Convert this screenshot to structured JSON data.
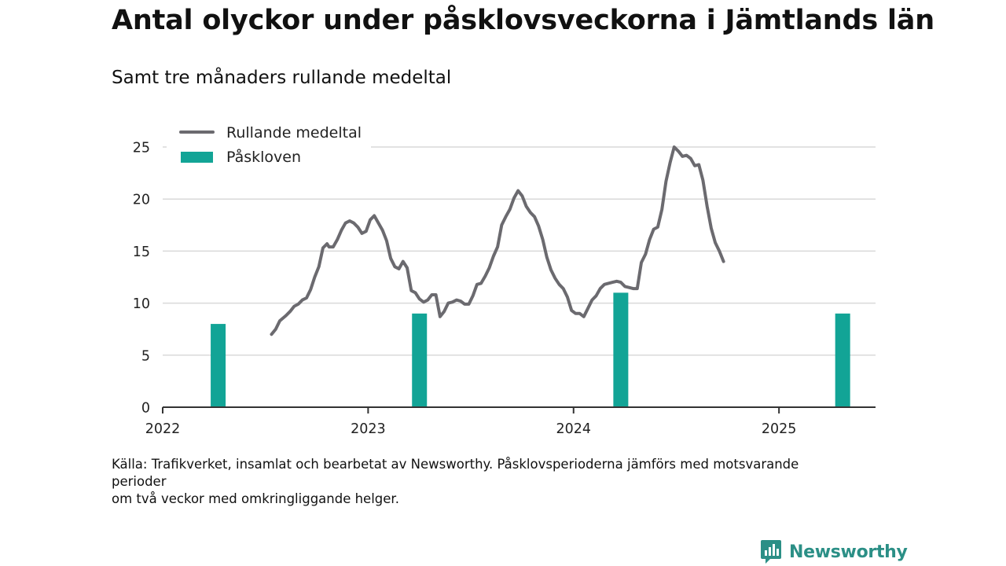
{
  "title": "Antal olyckor under påsklovsveckorna i Jämtlands län",
  "subtitle": "Samt tre månaders rullande medeltal",
  "source": {
    "line1": "Källa: Trafikverket, insamlat och bearbetat av Newsworthy. Påsklovsperioderna jämförs med motsvarande perioder",
    "line2": "om två veckor med omkringliggande helger."
  },
  "brand": {
    "name": "Newsworthy",
    "icon": "newsworthy-logo-icon"
  },
  "colors": {
    "line": "#6b6a6f",
    "bar": "#12a496",
    "grid": "#d9d9d9",
    "axis": "#333333",
    "brand": "#2b8f86"
  },
  "chart_data": {
    "type": "bar+line",
    "title": "Antal olyckor under påsklovsveckorna i Jämtlands län",
    "subtitle": "Samt tre månaders rullande medeltal",
    "xlabel": "",
    "ylabel": "",
    "ylim": [
      0,
      25
    ],
    "yticks": [
      0,
      5,
      10,
      15,
      20,
      25
    ],
    "xlim": [
      2022.0,
      2025.47
    ],
    "xticks": [
      {
        "value": 2022,
        "label": "2022"
      },
      {
        "value": 2023,
        "label": "2023"
      },
      {
        "value": 2024,
        "label": "2024"
      },
      {
        "value": 2025,
        "label": "2025"
      }
    ],
    "grid": "horizontal",
    "legend_position": "top-left",
    "series": [
      {
        "name": "Rullande medeltal",
        "type": "line",
        "points": [
          [
            2022.53,
            7.0
          ],
          [
            2022.55,
            7.5
          ],
          [
            2022.57,
            8.3
          ],
          [
            2022.6,
            8.8
          ],
          [
            2022.62,
            9.2
          ],
          [
            2022.64,
            9.7
          ],
          [
            2022.66,
            9.9
          ],
          [
            2022.68,
            10.3
          ],
          [
            2022.7,
            10.5
          ],
          [
            2022.72,
            11.3
          ],
          [
            2022.74,
            12.5
          ],
          [
            2022.76,
            13.5
          ],
          [
            2022.78,
            15.3
          ],
          [
            2022.8,
            15.7
          ],
          [
            2022.81,
            15.4
          ],
          [
            2022.83,
            15.4
          ],
          [
            2022.85,
            16.1
          ],
          [
            2022.87,
            17.0
          ],
          [
            2022.89,
            17.7
          ],
          [
            2022.91,
            17.9
          ],
          [
            2022.93,
            17.7
          ],
          [
            2022.95,
            17.3
          ],
          [
            2022.97,
            16.7
          ],
          [
            2022.99,
            16.9
          ],
          [
            2023.01,
            18.0
          ],
          [
            2023.03,
            18.4
          ],
          [
            2023.05,
            17.7
          ],
          [
            2023.07,
            17.0
          ],
          [
            2023.09,
            16.0
          ],
          [
            2023.11,
            14.3
          ],
          [
            2023.13,
            13.5
          ],
          [
            2023.15,
            13.3
          ],
          [
            2023.17,
            14.0
          ],
          [
            2023.19,
            13.4
          ],
          [
            2023.21,
            11.2
          ],
          [
            2023.23,
            11.0
          ],
          [
            2023.25,
            10.4
          ],
          [
            2023.27,
            10.1
          ],
          [
            2023.29,
            10.3
          ],
          [
            2023.31,
            10.8
          ],
          [
            2023.33,
            10.8
          ],
          [
            2023.35,
            8.7
          ],
          [
            2023.37,
            9.2
          ],
          [
            2023.39,
            10.0
          ],
          [
            2023.41,
            10.1
          ],
          [
            2023.43,
            10.3
          ],
          [
            2023.45,
            10.2
          ],
          [
            2023.47,
            9.9
          ],
          [
            2023.49,
            9.9
          ],
          [
            2023.51,
            10.7
          ],
          [
            2023.53,
            11.8
          ],
          [
            2023.55,
            11.9
          ],
          [
            2023.57,
            12.6
          ],
          [
            2023.59,
            13.4
          ],
          [
            2023.61,
            14.5
          ],
          [
            2023.63,
            15.4
          ],
          [
            2023.65,
            17.5
          ],
          [
            2023.67,
            18.3
          ],
          [
            2023.69,
            19.0
          ],
          [
            2023.71,
            20.1
          ],
          [
            2023.73,
            20.8
          ],
          [
            2023.75,
            20.3
          ],
          [
            2023.77,
            19.3
          ],
          [
            2023.79,
            18.7
          ],
          [
            2023.81,
            18.3
          ],
          [
            2023.83,
            17.4
          ],
          [
            2023.85,
            16.1
          ],
          [
            2023.87,
            14.4
          ],
          [
            2023.89,
            13.2
          ],
          [
            2023.91,
            12.4
          ],
          [
            2023.93,
            11.8
          ],
          [
            2023.95,
            11.4
          ],
          [
            2023.97,
            10.6
          ],
          [
            2023.99,
            9.3
          ],
          [
            2024.01,
            9.0
          ],
          [
            2024.03,
            9.0
          ],
          [
            2024.05,
            8.7
          ],
          [
            2024.07,
            9.5
          ],
          [
            2024.09,
            10.3
          ],
          [
            2024.11,
            10.7
          ],
          [
            2024.13,
            11.4
          ],
          [
            2024.15,
            11.8
          ],
          [
            2024.17,
            11.9
          ],
          [
            2024.19,
            12.0
          ],
          [
            2024.21,
            12.1
          ],
          [
            2024.23,
            12.0
          ],
          [
            2024.25,
            11.6
          ],
          [
            2024.27,
            11.5
          ],
          [
            2024.29,
            11.4
          ],
          [
            2024.31,
            11.4
          ],
          [
            2024.33,
            13.9
          ],
          [
            2024.35,
            14.7
          ],
          [
            2024.37,
            16.1
          ],
          [
            2024.39,
            17.1
          ],
          [
            2024.41,
            17.3
          ],
          [
            2024.43,
            19.0
          ],
          [
            2024.45,
            21.7
          ],
          [
            2024.47,
            23.5
          ],
          [
            2024.49,
            25.0
          ],
          [
            2024.51,
            24.6
          ],
          [
            2024.53,
            24.1
          ],
          [
            2024.55,
            24.2
          ],
          [
            2024.57,
            23.9
          ],
          [
            2024.59,
            23.2
          ],
          [
            2024.61,
            23.3
          ],
          [
            2024.63,
            21.8
          ],
          [
            2024.65,
            19.3
          ],
          [
            2024.67,
            17.2
          ],
          [
            2024.69,
            15.8
          ],
          [
            2024.71,
            15.0
          ],
          [
            2024.73,
            14.0
          ]
        ]
      },
      {
        "name": "Påskloven",
        "type": "bar",
        "points": [
          [
            2022.27,
            8
          ],
          [
            2023.25,
            9
          ],
          [
            2024.23,
            11
          ],
          [
            2025.31,
            9
          ]
        ]
      }
    ]
  }
}
